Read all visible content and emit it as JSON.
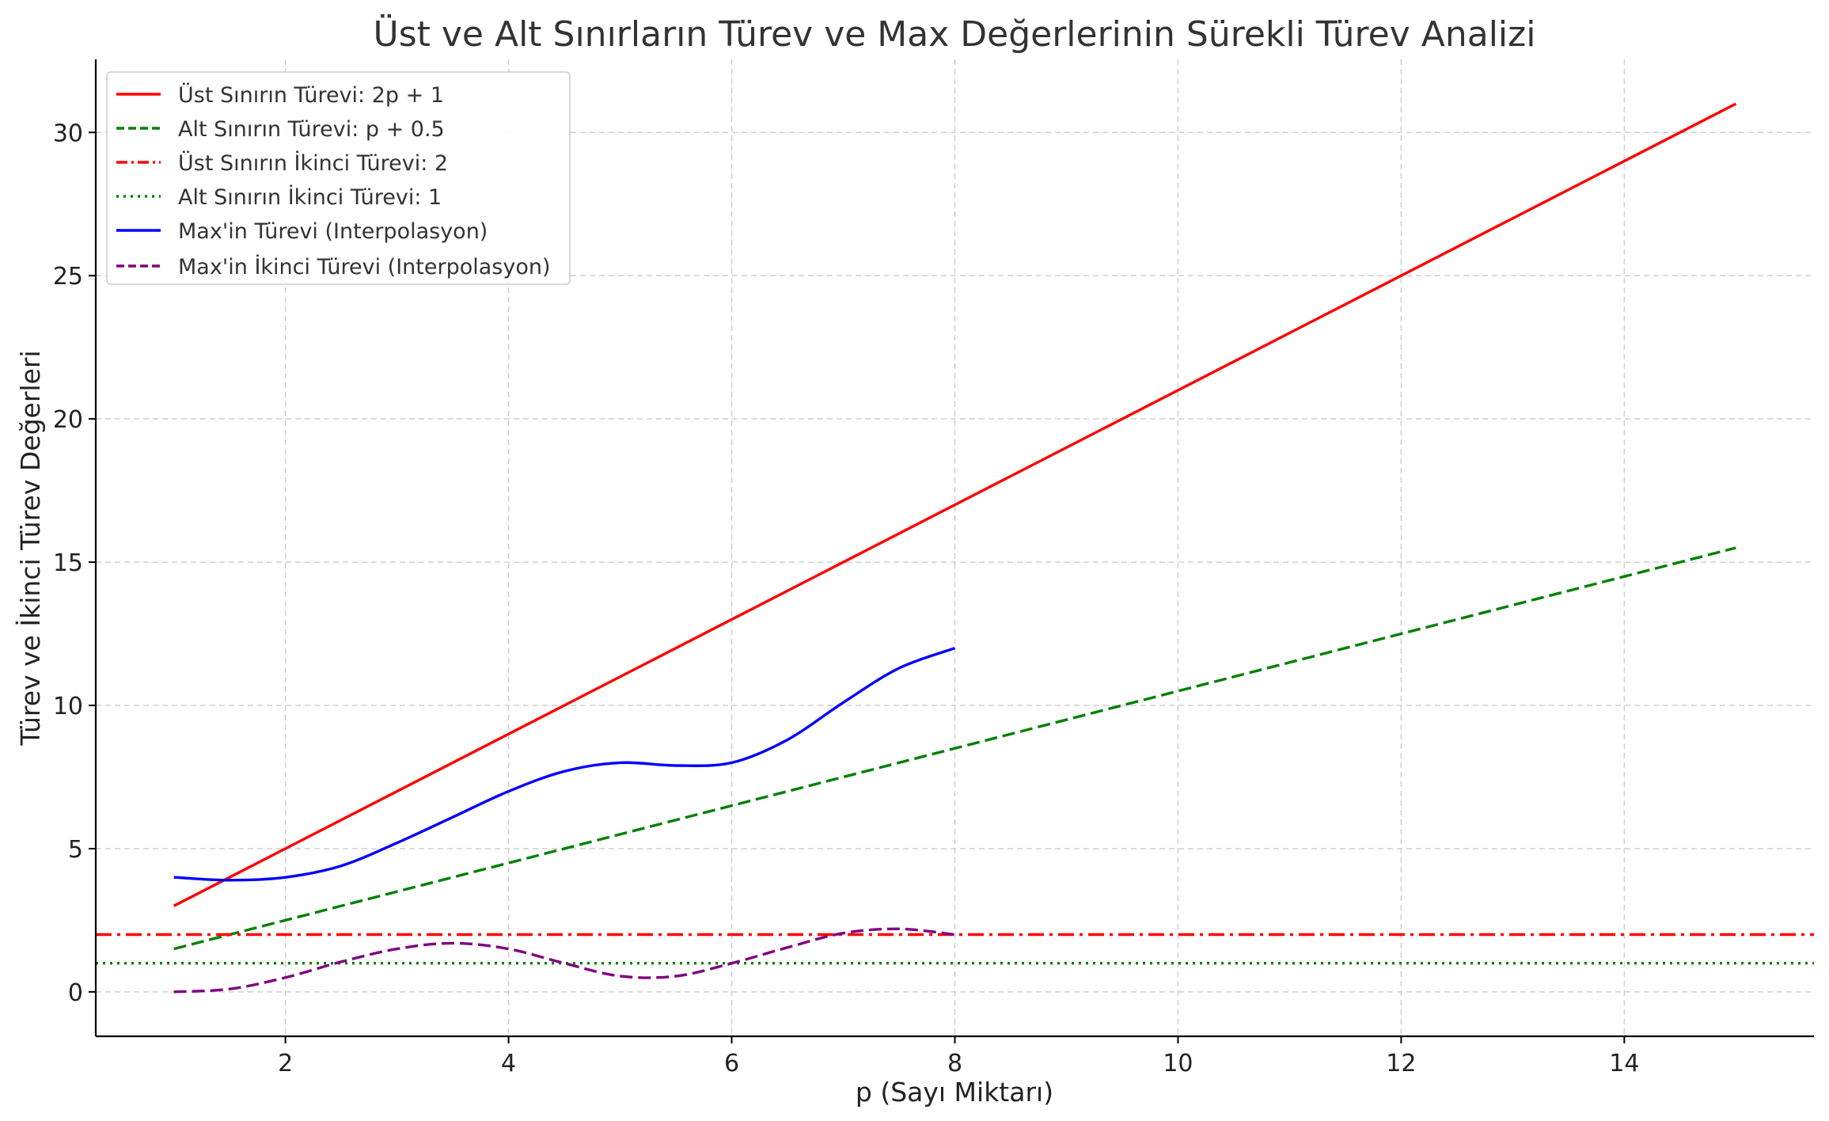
{
  "chart_data": {
    "type": "line",
    "title": "Üst ve Alt Sınırların Türev ve Max Değerlerinin Sürekli Türev Analizi",
    "xlabel": "p (Sayı Miktarı)",
    "ylabel": "Türev ve İkinci Türev Değerleri",
    "xlim": [
      0.3,
      15.7
    ],
    "ylim": [
      -1.55,
      32.55
    ],
    "xticks": [
      2,
      4,
      6,
      8,
      10,
      12,
      14
    ],
    "yticks": [
      0,
      5,
      10,
      15,
      20,
      25,
      30
    ],
    "grid": true,
    "legend_position": "top-left",
    "series": [
      {
        "name": "Üst Sınırın Türevi: 2p + 1",
        "color": "#ff0000",
        "style": "solid",
        "x": [
          1,
          15
        ],
        "y": [
          3,
          31
        ]
      },
      {
        "name": "Alt Sınırın Türevi: p + 0.5",
        "color": "#008000",
        "style": "dashed",
        "x": [
          1,
          15
        ],
        "y": [
          1.5,
          15.5
        ]
      },
      {
        "name": "Üst Sınırın İkinci Türevi: 2",
        "color": "#ff0000",
        "style": "dashdot",
        "x": [
          0.3,
          15.7
        ],
        "y": [
          2,
          2
        ]
      },
      {
        "name": "Alt Sınırın İkinci Türevi: 1",
        "color": "#008000",
        "style": "dotted",
        "x": [
          0.3,
          15.7
        ],
        "y": [
          1,
          1
        ]
      },
      {
        "name": "Max'in Türevi (Interpolasyon)",
        "color": "#0000ff",
        "style": "solid",
        "x": [
          1,
          1.5,
          2,
          2.5,
          3,
          3.5,
          4,
          4.5,
          5,
          5.5,
          6,
          6.5,
          7,
          7.5,
          8
        ],
        "y": [
          4,
          3.9,
          4,
          4.4,
          5.2,
          6.1,
          7,
          7.7,
          8,
          7.9,
          8,
          8.8,
          10.1,
          11.3,
          12
        ]
      },
      {
        "name": "Max'in İkinci Türevi (Interpolasyon)",
        "color": "#800080",
        "style": "dashed",
        "x": [
          1,
          1.5,
          2,
          2.5,
          3,
          3.5,
          4,
          4.5,
          5,
          5.5,
          6,
          6.5,
          7,
          7.5,
          8
        ],
        "y": [
          0,
          0.1,
          0.5,
          1.05,
          1.5,
          1.7,
          1.5,
          1.0,
          0.55,
          0.55,
          1.0,
          1.55,
          2.05,
          2.2,
          2.0
        ]
      }
    ]
  }
}
